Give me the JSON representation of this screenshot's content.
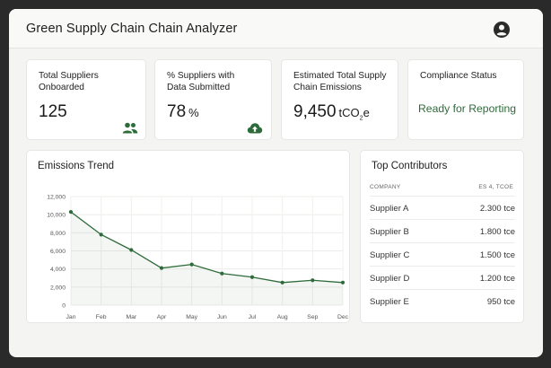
{
  "header": {
    "title": "Green Supply Chain Chain Analyzer",
    "user_icon": "user-circle-icon"
  },
  "kpis": [
    {
      "label_line1": "Total Suppliers",
      "label_line2": "Onboarded",
      "value": "125",
      "unit": "",
      "icon": "users-icon"
    },
    {
      "label_line1": "% Suppliers with",
      "label_line2": "Data Submitted",
      "value": "78",
      "unit": "%",
      "icon": "cloud-upload-icon"
    },
    {
      "label_line1": "Estimated Total Supply",
      "label_line2": "Chain Emissions",
      "value": "9,450",
      "unit": "tCO",
      "unit_sub": "2",
      "unit_suffix": "e"
    }
  ],
  "compliance": {
    "label": "Compliance Status",
    "value": "Ready for Reporting"
  },
  "emissions_trend": {
    "title": "Emissions Trend",
    "chart_data": {
      "type": "line",
      "title": "Emissions Trend",
      "categories": [
        "Jan",
        "Feb",
        "Mar",
        "Apr",
        "May",
        "Jun",
        "Jul",
        "Aug",
        "Sep",
        "Dec"
      ],
      "values": [
        10300,
        7800,
        6100,
        4100,
        4500,
        3500,
        3100,
        2500,
        2750,
        2500
      ],
      "yticks": [
        "0",
        "2,000",
        "4,000",
        "6,000",
        "8,000",
        "10,000",
        "12,000"
      ],
      "ylim": [
        0,
        12000
      ],
      "grid": true,
      "line_color": "#2e6b3a"
    }
  },
  "top_contributors": {
    "title": "Top Contributors",
    "col_company": "COMPANY",
    "col_value": "ES 4, TCOE",
    "rows": [
      {
        "name": "Supplier A",
        "value": "2.300 tce"
      },
      {
        "name": "Supplier B",
        "value": "1.800 tce"
      },
      {
        "name": "Supplier C",
        "value": "1.500 tce"
      },
      {
        "name": "Supplier D",
        "value": "1.200 tce"
      },
      {
        "name": "Supplier E",
        "value": "950 tce"
      }
    ]
  }
}
